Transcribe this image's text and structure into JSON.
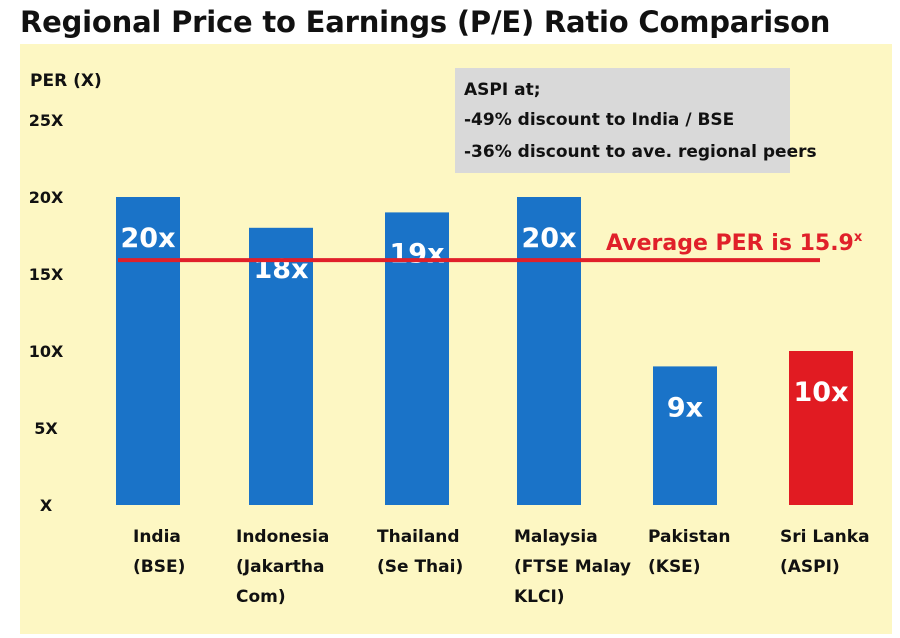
{
  "chart_data": {
    "type": "bar",
    "title": "Regional Price to Earnings (P/E) Ratio Comparison",
    "ylabel": "PER (X)",
    "ylim": [
      0,
      25
    ],
    "yticks": [
      {
        "value": 0,
        "label": "X"
      },
      {
        "value": 5,
        "label": "5X"
      },
      {
        "value": 10,
        "label": "10X"
      },
      {
        "value": 15,
        "label": "15X"
      },
      {
        "value": 20,
        "label": "20X"
      },
      {
        "value": 25,
        "label": "25X"
      }
    ],
    "categories": [
      {
        "lines": [
          "India",
          "(BSE)"
        ]
      },
      {
        "lines": [
          "Indonesia",
          "(Jakartha",
          "Com)"
        ]
      },
      {
        "lines": [
          "Thailand",
          "(Se Thai)"
        ]
      },
      {
        "lines": [
          "Malaysia",
          "(FTSE Malay",
          "KLCI)"
        ]
      },
      {
        "lines": [
          "Pakistan",
          "(KSE)"
        ]
      },
      {
        "lines": [
          "Sri Lanka",
          "(ASPI)"
        ]
      }
    ],
    "values": [
      20,
      18,
      19,
      20,
      9,
      10
    ],
    "value_labels": [
      "20x",
      "18x",
      "19x",
      "20x",
      "9x",
      "10x"
    ],
    "bar_colors": [
      "#1a73c8",
      "#1a73c8",
      "#1a73c8",
      "#1a73c8",
      "#1a73c8",
      "#e11b22"
    ],
    "average_line": {
      "value": 15.9,
      "label": "Average PER is 15.9",
      "label_suffix": "x",
      "color": "#e0202a"
    },
    "annotation_box": {
      "lines": [
        "ASPI at;",
        "-49% discount to India / BSE",
        "-36% discount to ave. regional peers"
      ],
      "background": "#d9d9d9"
    },
    "background_color": "#fdf7c3",
    "grid": false
  }
}
